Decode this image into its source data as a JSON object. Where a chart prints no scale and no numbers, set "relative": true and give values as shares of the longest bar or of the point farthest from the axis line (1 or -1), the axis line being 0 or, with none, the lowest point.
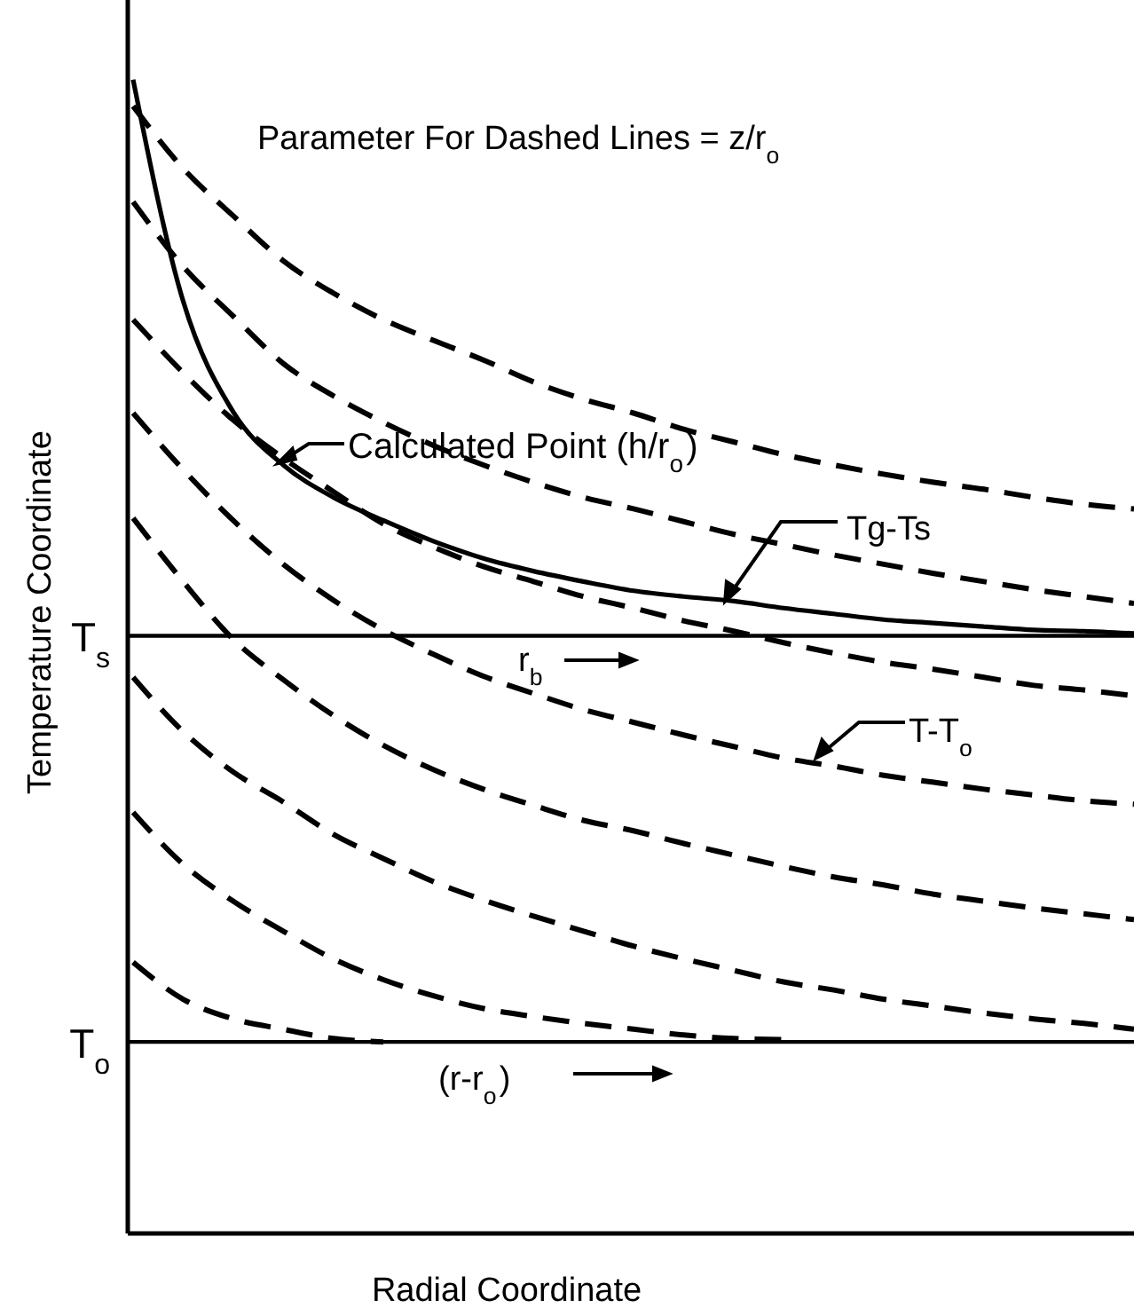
{
  "chart_data": {
    "type": "line",
    "relative": true,
    "xlabel": "Radial Coordinate",
    "ylabel": "Temperature Coordinate",
    "legend": false,
    "grid": false,
    "categories": [
      null,
      null,
      null,
      null,
      null,
      null,
      null,
      null,
      null,
      null,
      null,
      null,
      null,
      null,
      null,
      null,
      null,
      null,
      null,
      null,
      null
    ],
    "series": [
      {
        "color": "#000000",
        "line_style": "solid",
        "values": [
          1.0,
          0.808,
          0.712,
          0.666,
          0.638,
          0.618,
          0.6,
          0.585,
          0.574,
          0.565,
          0.557,
          0.552,
          0.548,
          0.542,
          0.537,
          0.532,
          0.529,
          0.526,
          0.523,
          0.522,
          0.52
        ]
      },
      {
        "color": "#000000",
        "line_style": "dashed",
        "values": [
          0.977,
          0.923,
          0.882,
          0.843,
          0.815,
          0.792,
          0.774,
          0.757,
          0.738,
          0.723,
          0.711,
          0.697,
          0.686,
          0.675,
          0.666,
          0.658,
          0.651,
          0.645,
          0.638,
          0.632,
          0.628
        ]
      },
      {
        "color": "#000000",
        "line_style": "dashed",
        "values": [
          0.894,
          0.838,
          0.795,
          0.754,
          0.726,
          0.703,
          0.683,
          0.666,
          0.651,
          0.638,
          0.628,
          0.617,
          0.606,
          0.597,
          0.588,
          0.58,
          0.572,
          0.565,
          0.558,
          0.552,
          0.546
        ]
      },
      {
        "color": "#000000",
        "line_style": "dashed",
        "values": [
          0.792,
          0.746,
          0.705,
          0.672,
          0.643,
          0.615,
          0.595,
          0.578,
          0.565,
          0.552,
          0.542,
          0.531,
          0.522,
          0.512,
          0.503,
          0.495,
          0.489,
          0.482,
          0.475,
          0.471,
          0.466
        ]
      },
      {
        "color": "#000000",
        "line_style": "dashed",
        "values": [
          0.711,
          0.662,
          0.618,
          0.58,
          0.549,
          0.523,
          0.502,
          0.483,
          0.468,
          0.454,
          0.443,
          0.432,
          0.422,
          0.412,
          0.405,
          0.397,
          0.391,
          0.385,
          0.38,
          0.375,
          0.372
        ]
      },
      {
        "color": "#000000",
        "line_style": "dashed",
        "values": [
          0.62,
          0.565,
          0.515,
          0.48,
          0.449,
          0.423,
          0.402,
          0.385,
          0.371,
          0.358,
          0.349,
          0.338,
          0.328,
          0.318,
          0.309,
          0.302,
          0.294,
          0.288,
          0.282,
          0.277,
          0.272
        ]
      },
      {
        "color": "#000000",
        "line_style": "dashed",
        "values": [
          0.482,
          0.435,
          0.4,
          0.374,
          0.346,
          0.325,
          0.305,
          0.289,
          0.275,
          0.262,
          0.249,
          0.238,
          0.228,
          0.218,
          0.211,
          0.203,
          0.197,
          0.191,
          0.186,
          0.182,
          0.177
        ]
      },
      {
        "color": "#000000",
        "line_style": "dashed",
        "values": [
          0.365,
          0.32,
          0.288,
          0.262,
          0.238,
          0.22,
          0.206,
          0.195,
          0.188,
          0.182,
          0.177,
          0.172,
          0.169,
          0.168,
          null,
          null,
          null,
          null,
          null,
          null,
          null
        ]
      },
      {
        "color": "#000000",
        "line_style": "dashed",
        "values": [
          0.235,
          0.203,
          0.186,
          0.177,
          0.169,
          0.166,
          null,
          null,
          null,
          null,
          null,
          null,
          null,
          null,
          null,
          null,
          null,
          null,
          null,
          null,
          null
        ]
      }
    ],
    "ref_lines": [
      {
        "axis": "y",
        "value": 0.518,
        "label": "T$_{s}$",
        "color": "#000000"
      },
      {
        "axis": "y",
        "value": 0.166,
        "label": "T$_{o}$",
        "color": "#000000"
      }
    ],
    "annotations": [
      "Parameter For Dashed Lines = z/r$_{o}$",
      "Calculated Point (h/r$_{o}$)",
      "Tg-Ts",
      "r$_{b}$",
      "T-T$_{o}$",
      "(r-r$_{o}$)"
    ]
  }
}
